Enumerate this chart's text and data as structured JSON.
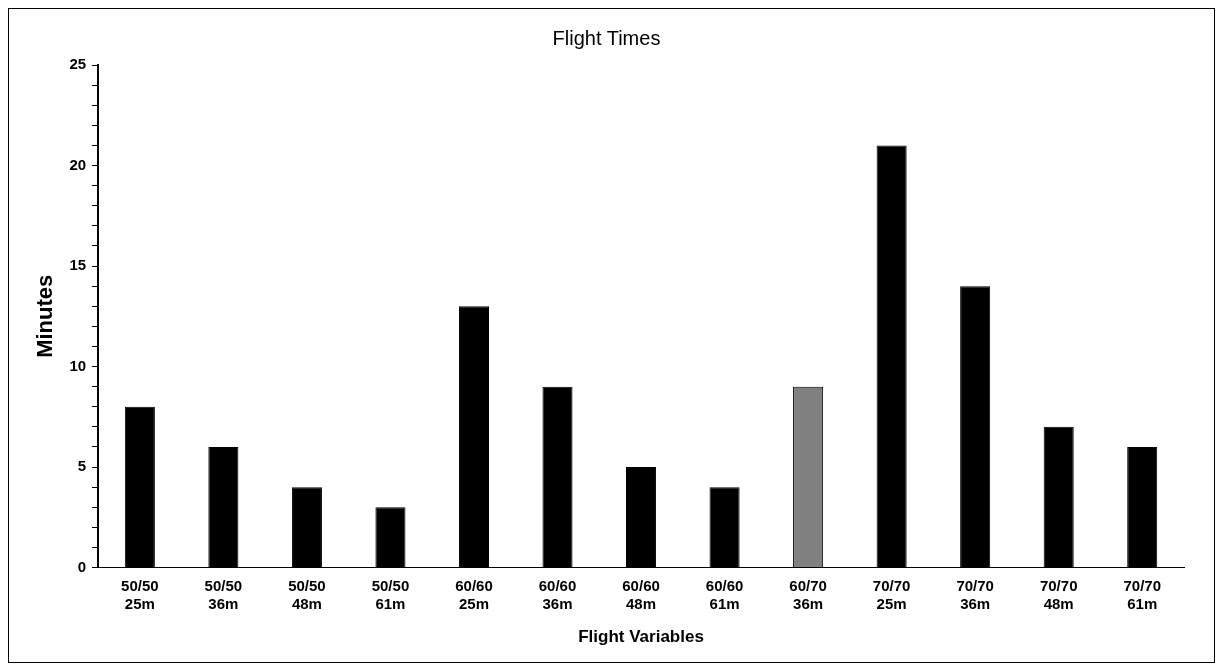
{
  "chart_data": {
    "type": "bar",
    "title": "Flight Times",
    "xlabel": "Flight Variables",
    "ylabel": "Minutes",
    "categories": [
      "50/50\n25m",
      "50/50\n36m",
      "50/50\n48m",
      "50/50\n61m",
      "60/60\n25m",
      "60/60\n36m",
      "60/60\n48m",
      "60/60\n61m",
      "60/70\n36m",
      "70/70\n25m",
      "70/70\n36m",
      "70/70\n48m",
      "70/70\n61m"
    ],
    "values": [
      8,
      6,
      4,
      3,
      13,
      9,
      5,
      4,
      9,
      21,
      14,
      7,
      6
    ],
    "colors": [
      "#000000",
      "#000000",
      "#000000",
      "#000000",
      "#000000",
      "#000000",
      "#000000",
      "#000000",
      "#808080",
      "#000000",
      "#000000",
      "#000000",
      "#000000"
    ],
    "ylim": [
      0,
      25
    ],
    "yticks": [
      0,
      {
        "value": 1,
        "label": null
      },
      {
        "value": 2,
        "label": null
      },
      {
        "value": 3,
        "label": null
      },
      {
        "value": 4,
        "label": null
      },
      5,
      {
        "value": 6,
        "label": null
      },
      {
        "value": 7,
        "label": null
      },
      {
        "value": 8,
        "label": null
      },
      {
        "value": 9,
        "label": null
      },
      10,
      {
        "value": 11,
        "label": null
      },
      {
        "value": 12,
        "label": null
      },
      {
        "value": 13,
        "label": null
      },
      {
        "value": 14,
        "label": null
      },
      15,
      {
        "value": 16,
        "label": null
      },
      {
        "value": 17,
        "label": null
      },
      {
        "value": 18,
        "label": null
      },
      {
        "value": 19,
        "label": null
      },
      20,
      {
        "value": 21,
        "label": null
      },
      {
        "value": 22,
        "label": null
      },
      {
        "value": 23,
        "label": null
      },
      {
        "value": 24,
        "label": null
      },
      25
    ],
    "grid": false,
    "legend": false
  }
}
